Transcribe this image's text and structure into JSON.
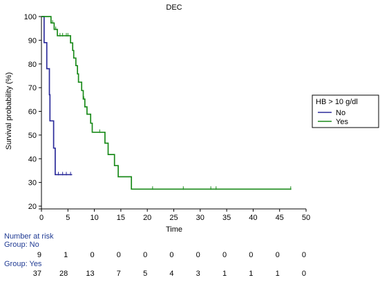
{
  "chart_data": {
    "type": "line",
    "title": "DEC",
    "xlabel": "Time",
    "ylabel": "Survival probability (%)",
    "xlim": [
      0,
      50
    ],
    "ylim": [
      20,
      100
    ],
    "x_ticks": [
      0,
      5,
      10,
      15,
      20,
      25,
      30,
      35,
      40,
      45,
      50
    ],
    "y_ticks": [
      20,
      30,
      40,
      50,
      60,
      70,
      80,
      90,
      100
    ],
    "grid": false,
    "legend": {
      "title": "HB > 10 g/dl",
      "placement": "right",
      "entries": [
        "No",
        "Yes"
      ]
    },
    "series": [
      {
        "name": "No",
        "color": "#2b2b9a",
        "steps": [
          [
            0,
            100
          ],
          [
            0.5,
            100
          ],
          [
            0.5,
            89
          ],
          [
            1.0,
            89
          ],
          [
            1.0,
            78
          ],
          [
            1.5,
            78
          ],
          [
            1.5,
            67
          ],
          [
            1.6,
            67
          ],
          [
            1.6,
            56
          ],
          [
            2.3,
            56
          ],
          [
            2.3,
            44.5
          ],
          [
            2.6,
            44.5
          ],
          [
            2.6,
            33.3
          ],
          [
            5.8,
            33.3
          ]
        ],
        "censor_x": [
          3.2,
          4.0,
          4.7,
          5.5
        ]
      },
      {
        "name": "Yes",
        "color": "#1a8a1a",
        "steps": [
          [
            0,
            100
          ],
          [
            1.8,
            100
          ],
          [
            1.8,
            97.3
          ],
          [
            2.4,
            97.3
          ],
          [
            2.4,
            94.6
          ],
          [
            3.0,
            94.6
          ],
          [
            3.0,
            91.9
          ],
          [
            5.5,
            91.9
          ],
          [
            5.5,
            88.9
          ],
          [
            5.9,
            88.9
          ],
          [
            5.9,
            85.7
          ],
          [
            6.1,
            85.7
          ],
          [
            6.1,
            82.5
          ],
          [
            6.5,
            82.5
          ],
          [
            6.5,
            79.3
          ],
          [
            6.8,
            79.3
          ],
          [
            6.8,
            75.8
          ],
          [
            7.0,
            75.8
          ],
          [
            7.0,
            72.3
          ],
          [
            7.6,
            72.3
          ],
          [
            7.6,
            68.8
          ],
          [
            7.9,
            68.8
          ],
          [
            7.9,
            65.2
          ],
          [
            8.2,
            65.2
          ],
          [
            8.2,
            61.9
          ],
          [
            8.6,
            61.9
          ],
          [
            8.6,
            58.8
          ],
          [
            9.3,
            58.8
          ],
          [
            9.3,
            55.0
          ],
          [
            9.6,
            55.0
          ],
          [
            9.6,
            51.2
          ],
          [
            12.0,
            51.2
          ],
          [
            12.0,
            46.6
          ],
          [
            12.6,
            46.6
          ],
          [
            12.6,
            41.8
          ],
          [
            13.8,
            41.8
          ],
          [
            13.8,
            37.1
          ],
          [
            14.5,
            37.1
          ],
          [
            14.5,
            32.4
          ],
          [
            17.0,
            32.4
          ],
          [
            17.0,
            27.2
          ],
          [
            47.2,
            27.2
          ]
        ],
        "censor_x": [
          2.1,
          2.7,
          3.5,
          4.0,
          4.7,
          5.0,
          8.0,
          11.0,
          21.0,
          26.8,
          32.0,
          33.0,
          47.1
        ]
      }
    ],
    "risk_table": {
      "title": "Number at risk",
      "times": [
        0,
        5,
        10,
        15,
        20,
        25,
        30,
        35,
        40,
        45,
        50
      ],
      "groups": [
        {
          "label": "Group: No",
          "counts": [
            9,
            1,
            0,
            0,
            0,
            0,
            0,
            0,
            0,
            0,
            0
          ]
        },
        {
          "label": "Group: Yes",
          "counts": [
            37,
            28,
            13,
            7,
            5,
            4,
            3,
            1,
            1,
            1,
            0
          ]
        }
      ]
    }
  }
}
